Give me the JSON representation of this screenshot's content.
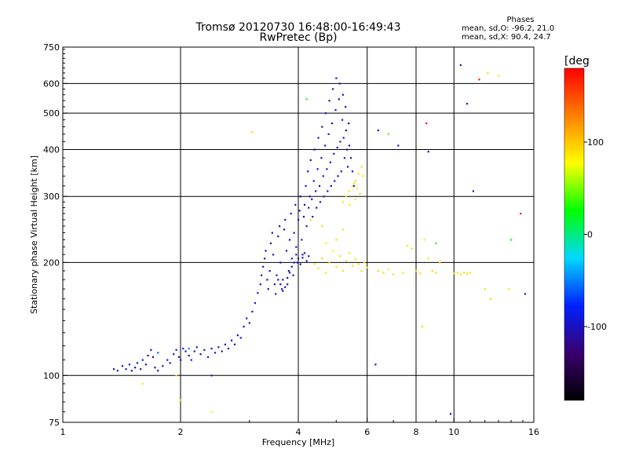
{
  "header": {
    "title_line1": "Tromsø 20120730 16:48:00-16:49:43",
    "title_line2": "RwPretec (Bp)"
  },
  "phase_stats": {
    "title": "Phases",
    "line_o": "mean, sd,O: -96.2, 21.0",
    "line_x": "mean, sd,X:  90.4, 24.7"
  },
  "chart_data": {
    "type": "scatter",
    "xlabel": "Frequency [MHz]",
    "ylabel": "Stationary phase Virtual Height [km]",
    "x_scale": "log",
    "y_scale": "log",
    "xlim": [
      1,
      16
    ],
    "ylim": [
      75,
      750
    ],
    "x_ticks": [
      1,
      2,
      4,
      6,
      8,
      10,
      16
    ],
    "x_tick_labels": [
      "1",
      "2",
      "4",
      "6",
      "8",
      "10",
      "16"
    ],
    "y_ticks": [
      75,
      100,
      200,
      300,
      400,
      500,
      600,
      750
    ],
    "y_tick_labels": [
      "75",
      "100",
      "200",
      "300",
      "400",
      "500",
      "600",
      "750"
    ],
    "grid_x": [
      2,
      4,
      6,
      8,
      10
    ],
    "grid_y": [
      100,
      200,
      300,
      400,
      500,
      600
    ],
    "color_scale": {
      "label": "[deg",
      "range": [
        -180,
        180
      ],
      "ticks": [
        100,
        0,
        -100
      ],
      "tick_labels": [
        "100",
        "0",
        "-100"
      ],
      "colors": [
        "#000000",
        "#3a006e",
        "#0020ff",
        "#00d8ff",
        "#00ff00",
        "#ffff00",
        "#ff8000",
        "#ff0000"
      ]
    },
    "series": [
      {
        "mode": "O",
        "phase_mean": -96.2,
        "points": [
          [
            1.35,
            104,
            -95
          ],
          [
            1.38,
            103,
            -100
          ],
          [
            1.42,
            106,
            -90
          ],
          [
            1.45,
            104,
            -105
          ],
          [
            1.48,
            107,
            -92
          ],
          [
            1.5,
            103,
            -98
          ],
          [
            1.53,
            105,
            -110
          ],
          [
            1.55,
            108,
            -95
          ],
          [
            1.58,
            104,
            -100
          ],
          [
            1.6,
            110,
            -88
          ],
          [
            1.63,
            107,
            -102
          ],
          [
            1.65,
            113,
            -97
          ],
          [
            1.68,
            117,
            -93
          ],
          [
            1.7,
            112,
            -108
          ],
          [
            1.72,
            105,
            -99
          ],
          [
            1.75,
            103,
            -96
          ],
          [
            1.8,
            106,
            -101
          ],
          [
            1.85,
            110,
            -94
          ],
          [
            1.88,
            108,
            -103
          ],
          [
            1.92,
            114,
            -97
          ],
          [
            1.95,
            117,
            -92
          ],
          [
            1.98,
            112,
            -110
          ],
          [
            2.0,
            110,
            -96
          ],
          [
            2.03,
            118,
            -88
          ],
          [
            2.06,
            116,
            -104
          ],
          [
            2.1,
            113,
            -98
          ],
          [
            2.13,
            110,
            -95
          ],
          [
            2.17,
            116,
            -100
          ],
          [
            2.2,
            119,
            -93
          ],
          [
            2.25,
            114,
            -106
          ],
          [
            2.3,
            117,
            -97
          ],
          [
            2.35,
            112,
            -99
          ],
          [
            2.4,
            118,
            -102
          ],
          [
            2.45,
            115,
            -91
          ],
          [
            2.5,
            119,
            -98
          ],
          [
            2.55,
            116,
            -105
          ],
          [
            2.6,
            121,
            -94
          ],
          [
            2.65,
            118,
            -100
          ],
          [
            2.7,
            124,
            -97
          ],
          [
            2.75,
            121,
            -108
          ],
          [
            2.8,
            128,
            -95
          ],
          [
            2.85,
            126,
            -99
          ],
          [
            2.9,
            135,
            -102
          ],
          [
            2.95,
            142,
            -90
          ],
          [
            3.0,
            138,
            -97
          ],
          [
            3.05,
            148,
            -104
          ],
          [
            3.1,
            156,
            -96
          ],
          [
            3.15,
            166,
            -100
          ],
          [
            3.2,
            175,
            -93
          ],
          [
            3.22,
            185,
            -109
          ],
          [
            3.25,
            195,
            -97
          ],
          [
            3.28,
            205,
            -101
          ],
          [
            3.3,
            215,
            -94
          ],
          [
            3.33,
            180,
            -115
          ],
          [
            3.35,
            170,
            -99
          ],
          [
            3.38,
            190,
            -103
          ],
          [
            3.4,
            225,
            -96
          ],
          [
            3.43,
            240,
            -100
          ],
          [
            3.45,
            210,
            -92
          ],
          [
            3.48,
            175,
            -120
          ],
          [
            3.5,
            165,
            -98
          ],
          [
            3.52,
            185,
            -104
          ],
          [
            3.55,
            235,
            -95
          ],
          [
            3.58,
            250,
            -100
          ],
          [
            3.6,
            200,
            -97
          ],
          [
            3.63,
            170,
            -110
          ],
          [
            3.65,
            180,
            -96
          ],
          [
            3.68,
            245,
            -101
          ],
          [
            3.7,
            260,
            -94
          ],
          [
            3.73,
            215,
            -99
          ],
          [
            3.75,
            175,
            -115
          ],
          [
            3.78,
            190,
            -97
          ],
          [
            3.8,
            230,
            -102
          ],
          [
            3.83,
            270,
            -95
          ],
          [
            3.85,
            205,
            -100
          ],
          [
            3.88,
            185,
            -98
          ],
          [
            3.9,
            240,
            -104
          ],
          [
            3.93,
            285,
            -96
          ],
          [
            3.95,
            220,
            -99
          ],
          [
            3.98,
            200,
            -93
          ],
          [
            4.0,
            260,
            -101
          ],
          [
            4.03,
            275,
            -97
          ],
          [
            4.05,
            300,
            -105
          ],
          [
            4.08,
            230,
            -95
          ],
          [
            4.1,
            210,
            -100
          ],
          [
            4.13,
            265,
            -98
          ],
          [
            4.15,
            285,
            -103
          ],
          [
            4.18,
            320,
            -96
          ],
          [
            4.2,
            250,
            -99
          ],
          [
            4.23,
            350,
            -94
          ],
          [
            4.25,
            280,
            -101
          ],
          [
            4.28,
            300,
            -97
          ],
          [
            4.3,
            375,
            -104
          ],
          [
            4.33,
            295,
            -95
          ],
          [
            4.35,
            265,
            -100
          ],
          [
            4.38,
            330,
            -98
          ],
          [
            4.4,
            400,
            -102
          ],
          [
            4.43,
            310,
            -96
          ],
          [
            4.45,
            280,
            -99
          ],
          [
            4.48,
            355,
            -93
          ],
          [
            4.5,
            430,
            -101
          ],
          [
            4.53,
            320,
            -97
          ],
          [
            4.55,
            290,
            -105
          ],
          [
            4.58,
            380,
            -95
          ],
          [
            4.6,
            460,
            -100
          ],
          [
            4.63,
            340,
            -98
          ],
          [
            4.65,
            300,
            -103
          ],
          [
            4.68,
            410,
            -96
          ],
          [
            4.7,
            500,
            -99
          ],
          [
            4.73,
            355,
            -94
          ],
          [
            4.75,
            310,
            -101
          ],
          [
            4.78,
            440,
            -97
          ],
          [
            4.8,
            540,
            -104
          ],
          [
            4.83,
            370,
            -95
          ],
          [
            4.85,
            320,
            -100
          ],
          [
            4.88,
            470,
            -98
          ],
          [
            4.9,
            580,
            -102
          ],
          [
            4.93,
            390,
            -96
          ],
          [
            4.95,
            330,
            -99
          ],
          [
            4.98,
            510,
            -93
          ],
          [
            5.0,
            620,
            -101
          ],
          [
            5.03,
            405,
            -97
          ],
          [
            5.05,
            340,
            -105
          ],
          [
            5.08,
            545,
            -95
          ],
          [
            5.1,
            600,
            -100
          ],
          [
            5.12,
            420,
            -98
          ],
          [
            5.15,
            350,
            -103
          ],
          [
            5.18,
            480,
            -96
          ],
          [
            5.2,
            560,
            -99
          ],
          [
            5.22,
            430,
            -94
          ],
          [
            5.25,
            380,
            -101
          ],
          [
            5.28,
            520,
            -97
          ],
          [
            5.3,
            450,
            -104
          ],
          [
            5.33,
            400,
            -95
          ],
          [
            5.35,
            360,
            -100
          ],
          [
            5.38,
            470,
            -98
          ],
          [
            5.4,
            410,
            -102
          ],
          [
            5.45,
            380,
            -96
          ],
          [
            5.5,
            350,
            -99
          ],
          [
            5.55,
            320,
            -93
          ],
          [
            3.55,
            180,
            -97
          ],
          [
            3.6,
            175,
            -101
          ],
          [
            3.65,
            168,
            -95
          ],
          [
            3.7,
            172,
            -100
          ],
          [
            3.75,
            182,
            -104
          ],
          [
            3.8,
            188,
            -96
          ],
          [
            3.85,
            195,
            -99
          ],
          [
            3.9,
            200,
            -103
          ],
          [
            3.95,
            210,
            -97
          ],
          [
            4.0,
            205,
            -100
          ],
          [
            4.05,
            198,
            -95
          ],
          [
            4.1,
            206,
            -101
          ],
          [
            4.15,
            212,
            -98
          ],
          [
            4.2,
            202,
            -104
          ],
          [
            4.25,
            208,
            -96
          ]
        ]
      },
      {
        "mode": "X",
        "phase_mean": 90.4,
        "points": [
          [
            4.4,
            198,
            85
          ],
          [
            4.5,
            193,
            90
          ],
          [
            4.6,
            205,
            95
          ],
          [
            4.7,
            188,
            88
          ],
          [
            4.8,
            200,
            92
          ],
          [
            4.9,
            215,
            86
          ],
          [
            5.0,
            195,
            91
          ],
          [
            5.1,
            208,
            94
          ],
          [
            5.2,
            190,
            89
          ],
          [
            5.3,
            202,
            93
          ],
          [
            5.4,
            212,
            87
          ],
          [
            5.5,
            196,
            90
          ],
          [
            5.6,
            204,
            95
          ],
          [
            5.7,
            198,
            88
          ],
          [
            5.8,
            190,
            92
          ],
          [
            5.9,
            200,
            86
          ],
          [
            6.0,
            194,
            90
          ],
          [
            5.2,
            290,
            88
          ],
          [
            5.3,
            300,
            92
          ],
          [
            5.4,
            310,
            86
          ],
          [
            5.5,
            320,
            91
          ],
          [
            5.6,
            330,
            94
          ],
          [
            5.7,
            345,
            89
          ],
          [
            5.8,
            360,
            93
          ],
          [
            5.4,
            285,
            87
          ],
          [
            5.6,
            295,
            90
          ],
          [
            5.75,
            305,
            95
          ],
          [
            5.65,
            315,
            88
          ],
          [
            5.55,
            325,
            92
          ],
          [
            5.85,
            340,
            86
          ],
          [
            6.4,
            190,
            90
          ],
          [
            6.6,
            188,
            95
          ],
          [
            6.8,
            192,
            88
          ],
          [
            7.0,
            186,
            92
          ],
          [
            7.4,
            188,
            86
          ],
          [
            7.6,
            222,
            90
          ],
          [
            7.8,
            218,
            94
          ],
          [
            8.0,
            190,
            89
          ],
          [
            8.2,
            187,
            93
          ],
          [
            8.4,
            230,
            87
          ],
          [
            8.6,
            205,
            90
          ],
          [
            8.8,
            190,
            95
          ],
          [
            9.0,
            188,
            88
          ],
          [
            9.2,
            200,
            92
          ],
          [
            10.0,
            187,
            86
          ],
          [
            10.2,
            188,
            90
          ],
          [
            10.4,
            186,
            94
          ],
          [
            10.6,
            188,
            89
          ],
          [
            10.8,
            187,
            93
          ],
          [
            11.0,
            188,
            87
          ],
          [
            12.0,
            170,
            90
          ],
          [
            12.4,
            160,
            95
          ],
          [
            13.0,
            630,
            88
          ],
          [
            12.2,
            640,
            92
          ],
          [
            13.8,
            170,
            86
          ],
          [
            4.3,
            260,
            90
          ],
          [
            4.6,
            250,
            94
          ],
          [
            4.7,
            225,
            89
          ],
          [
            5.0,
            230,
            93
          ],
          [
            5.2,
            245,
            87
          ],
          [
            1.6,
            95,
            90
          ],
          [
            1.95,
            100,
            95
          ],
          [
            2.0,
            86,
            88
          ],
          [
            3.05,
            445,
            92
          ],
          [
            2.4,
            80,
            86
          ]
        ]
      },
      {
        "mode": "other",
        "phase_mean": null,
        "points": [
          [
            6.3,
            107,
            -95
          ],
          [
            7.2,
            410,
            -100
          ],
          [
            8.5,
            470,
            170
          ],
          [
            8.6,
            395,
            -98
          ],
          [
            9.8,
            79,
            -100
          ],
          [
            10.4,
            672,
            -95
          ],
          [
            10.8,
            530,
            -100
          ],
          [
            11.2,
            310,
            -98
          ],
          [
            11.6,
            615,
            170
          ],
          [
            14.8,
            270,
            170
          ],
          [
            15.2,
            165,
            -100
          ],
          [
            14.0,
            230,
            20
          ],
          [
            6.4,
            450,
            -105
          ],
          [
            6.8,
            440,
            40
          ],
          [
            8.3,
            135,
            95
          ],
          [
            4.2,
            545,
            30
          ],
          [
            9.0,
            225,
            30
          ],
          [
            2.4,
            100,
            -100
          ],
          [
            1.75,
            115,
            -60
          ],
          [
            2.1,
            118,
            -50
          ]
        ]
      }
    ]
  }
}
